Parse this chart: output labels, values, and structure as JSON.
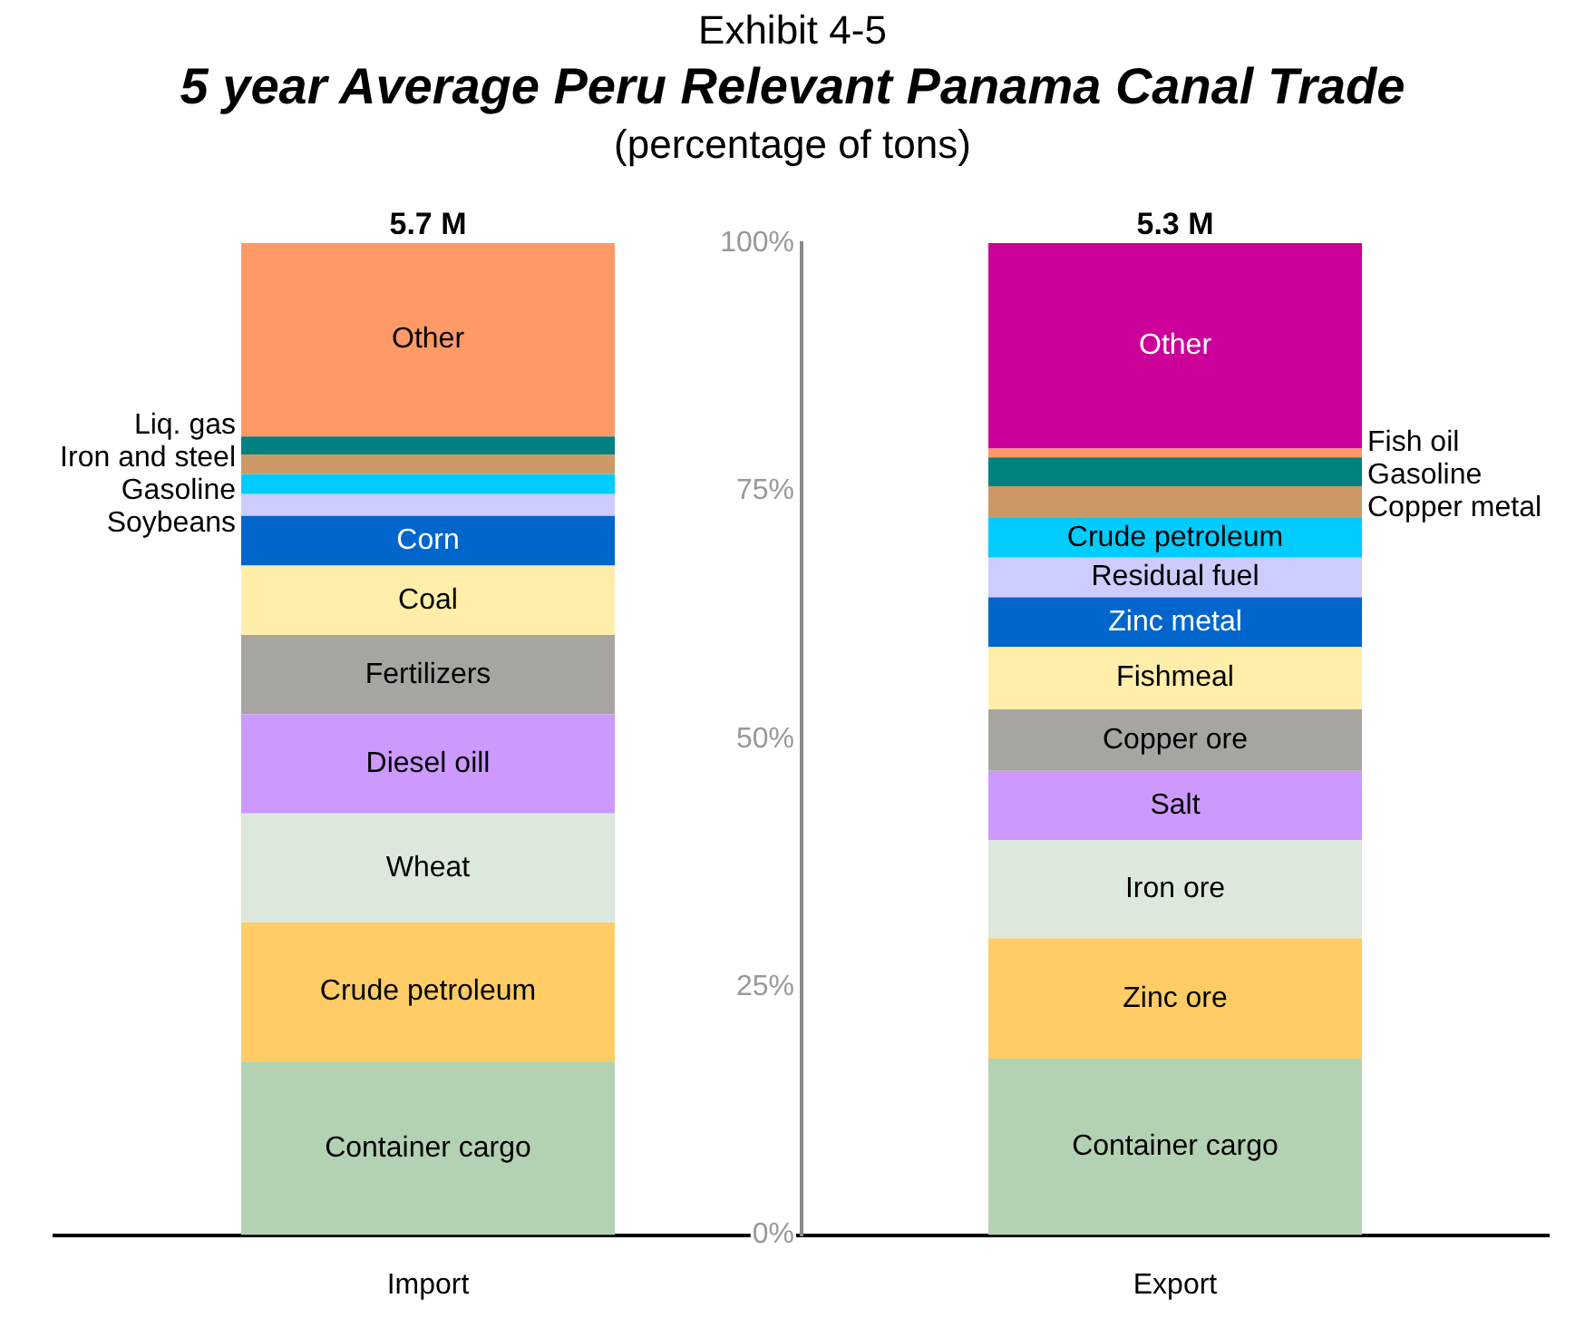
{
  "chart_data": {
    "type": "bar",
    "stacked": true,
    "title": "5 year Average Peru Relevant Panama Canal Trade",
    "subtitle": "(percentage of tons)",
    "annotations": [
      "Exhibit 4-5",
      {
        "text": "5.7 M",
        "x": "Import",
        "y": 100
      },
      {
        "text": "5.3 M",
        "x": "Export",
        "y": 100
      }
    ],
    "categories": [
      "Import",
      "Export"
    ],
    "ylim": [
      0,
      100
    ],
    "yticks": [
      {
        "value": 0,
        "label": "0%"
      },
      {
        "value": 25,
        "label": "25%"
      },
      {
        "value": 50,
        "label": "50%"
      },
      {
        "value": 75,
        "label": "75%"
      },
      {
        "value": 100,
        "label": "100%"
      }
    ],
    "grid": false,
    "legend": false,
    "series": [
      {
        "name": "Container cargo",
        "color": "#b3d1b3",
        "values": [
          17.5,
          null
        ]
      },
      {
        "name": "Crude petroleum",
        "color": "#ffcc66",
        "values": [
          14,
          null
        ]
      },
      {
        "name": "Wheat",
        "color": "#dce8dc",
        "values": [
          11,
          null
        ]
      },
      {
        "name": "Diesel oill",
        "color": "#cc99ff",
        "values": [
          10,
          null
        ]
      },
      {
        "name": "Fertilizers",
        "color": "#a8a4a0",
        "values": [
          8,
          null
        ]
      },
      {
        "name": "Coal",
        "color": "#ffeeaa",
        "values": [
          7,
          null
        ]
      },
      {
        "name": "Corn",
        "color": "#0066cc",
        "values": [
          5,
          null
        ]
      },
      {
        "name": "Soybeans",
        "color": "#ccccff",
        "values": [
          2.2,
          null
        ]
      },
      {
        "name": "Gasoline",
        "color": "#00ccff",
        "values": [
          2,
          null
        ]
      },
      {
        "name": "Iron and steel",
        "color": "#cc9966",
        "values": [
          2,
          null
        ]
      },
      {
        "name": "Liq. gas",
        "color": "#008080",
        "values": [
          1.8,
          null
        ]
      },
      {
        "name": "Other",
        "color": "#ff9966",
        "values": [
          19.5,
          null
        ]
      },
      {
        "name": "Container cargo",
        "color": "#b3d1b3",
        "values": [
          null,
          17.8
        ]
      },
      {
        "name": "Zinc ore",
        "color": "#ffcc66",
        "values": [
          null,
          12.1
        ]
      },
      {
        "name": "Iron ore",
        "color": "#dce8dc",
        "values": [
          null,
          9.9
        ]
      },
      {
        "name": "Salt",
        "color": "#cc99ff",
        "values": [
          null,
          7
        ]
      },
      {
        "name": "Copper ore",
        "color": "#a8a4a0",
        "values": [
          null,
          6.2
        ]
      },
      {
        "name": "Fishmeal",
        "color": "#ffeeaa",
        "values": [
          null,
          6.3
        ]
      },
      {
        "name": "Zinc metal",
        "color": "#0066cc",
        "values": [
          null,
          5
        ]
      },
      {
        "name": "Residual fuel",
        "color": "#ccccff",
        "values": [
          null,
          4
        ]
      },
      {
        "name": "Crude petroleum",
        "color": "#00ccff",
        "values": [
          null,
          4
        ]
      },
      {
        "name": "Copper metal",
        "color": "#cc9966",
        "values": [
          null,
          3.2
        ]
      },
      {
        "name": "Gasoline",
        "color": "#008080",
        "values": [
          null,
          2.9
        ]
      },
      {
        "name": "Fish oil",
        "color": "#ff9966",
        "values": [
          null,
          0.9
        ]
      },
      {
        "name": "Other",
        "color": "#cc0099",
        "values": [
          null,
          20.7
        ]
      }
    ]
  }
}
